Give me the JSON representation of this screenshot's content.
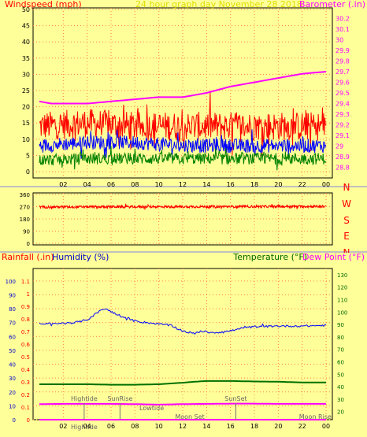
{
  "chart_data": [
    {
      "type": "line",
      "title": "24 hour graph day   November 28 2018",
      "left_label": "Windspeed (mph)",
      "right_label": "Barometer (.in)",
      "x_ticks": [
        "02",
        "04",
        "06",
        "08",
        "10",
        "12",
        "14",
        "16",
        "18",
        "20",
        "22",
        "00"
      ],
      "y_left_ticks": [
        "0",
        "5",
        "10",
        "15",
        "20",
        "25",
        "30",
        "35",
        "40",
        "45",
        "50"
      ],
      "y_left_range": [
        0,
        50
      ],
      "y_right_ticks": [
        "28.8",
        "28.9",
        "29",
        "29.1",
        "29.2",
        "29.3",
        "29.4",
        "29.5",
        "29.6",
        "29.7",
        "29.8",
        "29.9",
        "30",
        "30.1",
        "30.2"
      ],
      "y_right_range": [
        28.7,
        30.3
      ],
      "grid": true,
      "series": [
        {
          "name": "Gust",
          "color": "#ff0000",
          "axis": "left",
          "noisy": true,
          "x": [
            0,
            4,
            8,
            12,
            16,
            20,
            24
          ],
          "y": [
            14,
            15,
            14,
            14,
            14,
            14,
            14
          ],
          "spread": 4.5
        },
        {
          "name": "Wind average",
          "color": "#0000ff",
          "axis": "left",
          "noisy": true,
          "x": [
            0,
            4,
            8,
            12,
            16,
            20,
            24
          ],
          "y": [
            8,
            9,
            9,
            8,
            8,
            8,
            8
          ],
          "spread": 2.2
        },
        {
          "name": "Wind low",
          "color": "#008000",
          "axis": "left",
          "noisy": true,
          "x": [
            0,
            4,
            8,
            12,
            16,
            20,
            24
          ],
          "y": [
            3.5,
            4,
            4,
            4,
            4,
            4,
            4
          ],
          "spread": 1.8
        },
        {
          "name": "Barometer",
          "color": "#ff00ff",
          "axis": "right",
          "noisy": false,
          "x": [
            0,
            1,
            2,
            4,
            6,
            8,
            10,
            12,
            13,
            14,
            16,
            18,
            20,
            21,
            22,
            23,
            24
          ],
          "y": [
            29.42,
            29.4,
            29.4,
            29.4,
            29.42,
            29.44,
            29.46,
            29.46,
            29.48,
            29.5,
            29.56,
            29.6,
            29.64,
            29.66,
            29.68,
            29.69,
            29.7
          ]
        }
      ]
    },
    {
      "type": "line",
      "left_label": "",
      "y_left_ticks": [
        "0",
        "90",
        "180",
        "270",
        "360"
      ],
      "y_left_range": [
        0,
        360
      ],
      "right_ticks": [
        "N",
        "W",
        "S",
        "E",
        "N"
      ],
      "grid": true,
      "series": [
        {
          "name": "Wind direction",
          "color": "#ff0000",
          "axis": "left",
          "noisy": true,
          "x": [
            0,
            24
          ],
          "y": [
            268,
            272
          ],
          "spread": 9
        }
      ]
    },
    {
      "type": "line",
      "left_labels": [
        "Rainfall (.in)",
        "Humidity (%)"
      ],
      "right_labels": [
        "Temperature (°F)",
        "Dew Point (°F)"
      ],
      "x_ticks": [
        "02",
        "04",
        "06",
        "08",
        "10",
        "12",
        "14",
        "16",
        "18",
        "20",
        "22",
        "00"
      ],
      "y_rain_ticks": [
        "0",
        "0.1",
        "0.2",
        "0.3",
        "0.4",
        "0.5",
        "0.6",
        "0.7",
        "0.8",
        "0.9",
        "1",
        "1.1"
      ],
      "y_rain_range": [
        0,
        1.2
      ],
      "y_humidity_ticks": [
        "0",
        "10",
        "20",
        "30",
        "40",
        "50",
        "60",
        "70",
        "80",
        "90",
        "100"
      ],
      "y_humidity_range": [
        0,
        109
      ],
      "y_temp_ticks": [
        "20",
        "30",
        "40",
        "50",
        "60",
        "70",
        "80",
        "90",
        "100",
        "110",
        "120",
        "130"
      ],
      "y_temp_range": [
        13.5,
        135
      ],
      "grid": true,
      "series": [
        {
          "name": "Humidity",
          "color": "#0000ff",
          "axis": "humidity",
          "noisy": true,
          "x": [
            0,
            2,
            3,
            4,
            4.5,
            5,
            5.5,
            6,
            6.5,
            7,
            8,
            9,
            10,
            11,
            11.5,
            12,
            12.5,
            13,
            13.5,
            14,
            15,
            16,
            17,
            18,
            20,
            22,
            24
          ],
          "y": [
            69,
            69.5,
            70,
            72,
            75,
            78,
            80,
            78,
            76,
            74,
            71,
            70,
            69,
            68,
            66,
            64,
            63,
            62,
            64,
            63,
            63,
            64,
            66,
            67,
            67.5,
            67.5,
            68
          ],
          "spread": 0.7
        },
        {
          "name": "Temperature",
          "color": "#007000",
          "axis": "temp",
          "noisy": false,
          "x": [
            0,
            2,
            4,
            6,
            8,
            10,
            12,
            13,
            14,
            16,
            18,
            20,
            22,
            24
          ],
          "y": [
            42,
            42,
            42,
            41.6,
            41.6,
            42,
            43.2,
            44,
            44.6,
            44.6,
            44.2,
            44,
            43.4,
            43.4
          ]
        },
        {
          "name": "Dew Point",
          "color": "#ff00ff",
          "axis": "temp",
          "noisy": false,
          "x": [
            0,
            2,
            4,
            6,
            8,
            10,
            12,
            14,
            16,
            18,
            20,
            22,
            24
          ],
          "y": [
            26,
            26.2,
            26.2,
            26.2,
            26,
            25.6,
            26,
            26.2,
            26.4,
            26.4,
            26.2,
            26.2,
            26.2
          ]
        },
        {
          "name": "Rainfall",
          "color": "#ff00ff",
          "axis": "rain",
          "noisy": false,
          "x": [
            0,
            24
          ],
          "y": [
            0,
            0
          ]
        }
      ],
      "annotations": [
        {
          "text": "Hightide",
          "x": 3.75,
          "marker": true,
          "row": "upper"
        },
        {
          "text": "SunRise",
          "x": 6.75,
          "marker": true,
          "row": "upper"
        },
        {
          "text": "Lowtide",
          "x": 9.4,
          "marker": false,
          "row": "middle"
        },
        {
          "text": "Moon Set",
          "x": 12.6,
          "marker": false,
          "row": "lower"
        },
        {
          "text": "SunSet",
          "x": 16.45,
          "marker": true,
          "row": "upper"
        },
        {
          "text": "Moon Rise",
          "x": 23.1,
          "marker": false,
          "row": "lower"
        },
        {
          "text": "Hightide",
          "x": 3.75,
          "marker": false,
          "row": "axis"
        }
      ]
    }
  ]
}
